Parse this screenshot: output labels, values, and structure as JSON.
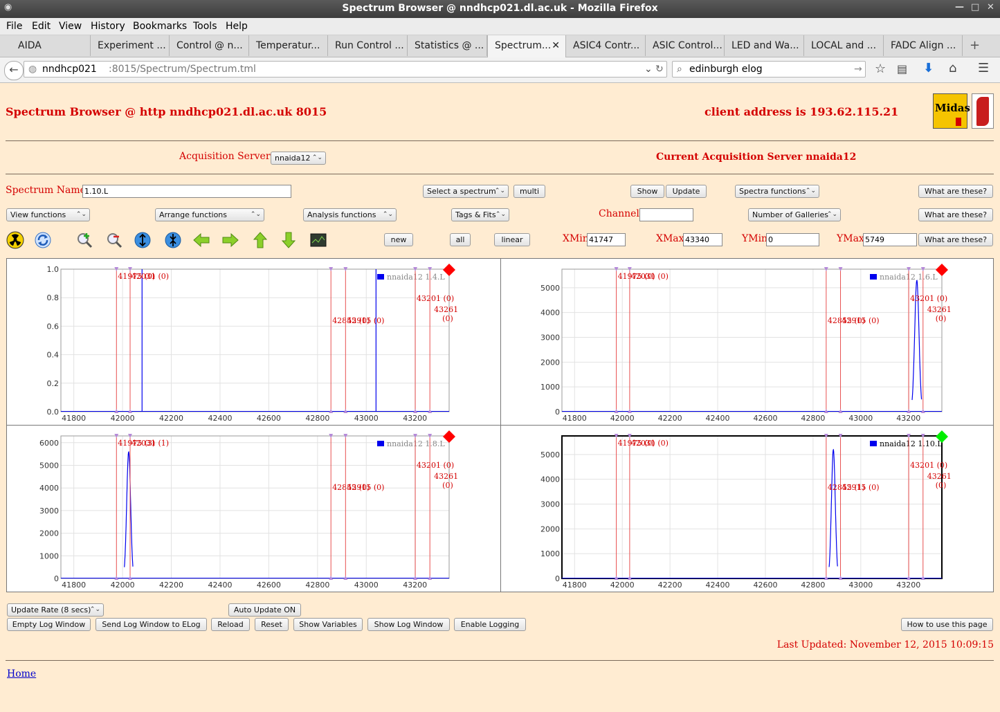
{
  "window": {
    "title": "Spectrum Browser @ nndhcp021.dl.ac.uk - Mozilla Firefox"
  },
  "menu": [
    "File",
    "Edit",
    "View",
    "History",
    "Bookmarks",
    "Tools",
    "Help"
  ],
  "tabs": [
    "AIDA",
    "Experiment ...",
    "Control @ n...",
    "Temperatur...",
    "Run Control ...",
    "Statistics @ ...",
    "Spectrum...",
    "ASIC4 Contr...",
    "ASIC Control...",
    "LED and Wa...",
    "LOCAL and ...",
    "FADC Align ..."
  ],
  "url": {
    "host": "nndhcp021",
    "path": ":8015/Spectrum/Spectrum.tml"
  },
  "search": {
    "value": "edinburgh elog"
  },
  "page": {
    "title": "Spectrum Browser @ http nndhcp021.dl.ac.uk 8015",
    "client": "client address is 193.62.115.21",
    "logo_midas": "Midas",
    "acq_label": "Acquisition Servers",
    "acq_value": "nnaida12",
    "current_server": "Current Acquisition Server nnaida12",
    "spectrum_name_label": "Spectrum Name:",
    "spectrum_name_value": "1.10.L",
    "select_spectrum": "Select a spectrum",
    "multi": "multi",
    "show": "Show",
    "update": "Update",
    "spectra_functions": "Spectra functions",
    "what": "What are these?",
    "view_functions": "View functions",
    "arrange_functions": "Arrange functions",
    "analysis_functions": "Analysis functions",
    "tags_fits": "Tags & Fits",
    "channel_label": "Channel:",
    "channel_value": "",
    "galleries": "Number of Galleries",
    "new": "new",
    "all": "all",
    "linear": "linear",
    "xmin_label": "XMin",
    "xmin": "41747",
    "xmax_label": "XMax",
    "xmax": "43340",
    "ymin_label": "YMin",
    "ymin": "0",
    "ymax_label": "YMax",
    "ymax": "5749",
    "update_rate": "Update Rate (8 secs)",
    "auto_update": "Auto Update ON",
    "empty_log": "Empty Log Window",
    "send_log": "Send Log Window to ELog",
    "reload": "Reload",
    "reset": "Reset",
    "show_vars": "Show Variables",
    "show_log": "Show Log Window",
    "enable_logging": "Enable Logging",
    "howto": "How to use this page",
    "last_updated": "Last Updated: November 12, 2015 10:09:15",
    "home": "Home"
  },
  "icons": [
    "radiation-icon",
    "refresh-icon",
    "zoom-in-icon",
    "zoom-out-icon",
    "expand-vertical-icon",
    "compress-vertical-icon",
    "arrow-left-icon",
    "arrow-right-icon",
    "arrow-up-icon",
    "arrow-down-icon",
    "screenshot-icon"
  ],
  "colors": {
    "accent_red": "#d40000",
    "spectrum_blue": "#0000ee",
    "marker_inactive": "#ff0000",
    "marker_active": "#00ee00"
  },
  "chart_data": [
    {
      "type": "line",
      "series": [
        {
          "name": "nnaida12 1.4.L",
          "peaks": [
            {
              "x": 42080,
              "y": 1.0
            },
            {
              "x": 43040,
              "y": 1.0
            }
          ]
        }
      ],
      "xlim": [
        41747,
        43340
      ],
      "ylim": [
        0,
        1.0
      ],
      "xticks": [
        "41800",
        "42000",
        "42200",
        "42400",
        "42600",
        "42800",
        "43000",
        "43200"
      ],
      "yticks": [
        "0.0",
        "0.2",
        "0.4",
        "0.6",
        "0.8",
        "1.0"
      ],
      "tags": [
        {
          "x": 41975,
          "text": "41975 (0)"
        },
        {
          "x": 42031,
          "text": "42031 (0)"
        },
        {
          "x": 42855,
          "text": "42855 (0)"
        },
        {
          "x": 42915,
          "text": "42915 (0)"
        },
        {
          "x": 43201,
          "text": "43201 (0)"
        },
        {
          "x": 43261,
          "text": "43261 (0)"
        }
      ],
      "selected": false
    },
    {
      "type": "line",
      "series": [
        {
          "name": "nnaida12 1.6.L",
          "peaks": [
            {
              "x": 43235,
              "y": 5300,
              "w": 9
            }
          ]
        }
      ],
      "xlim": [
        41747,
        43340
      ],
      "ylim": [
        0,
        5749
      ],
      "xticks": [
        "41800",
        "42000",
        "42200",
        "42400",
        "42600",
        "42800",
        "43000",
        "43200"
      ],
      "yticks": [
        "0",
        "1000",
        "2000",
        "3000",
        "4000",
        "5000"
      ],
      "tags": [
        {
          "x": 41975,
          "text": "41975 (0)"
        },
        {
          "x": 42031,
          "text": "42031 (0)"
        },
        {
          "x": 42855,
          "text": "42855 (0)"
        },
        {
          "x": 42915,
          "text": "42915 (0)"
        },
        {
          "x": 43201,
          "text": "43201 (0)"
        },
        {
          "x": 43261,
          "text": "43261 (0)"
        }
      ],
      "selected": false
    },
    {
      "type": "line",
      "series": [
        {
          "name": "nnaida12 1.8.L",
          "peaks": [
            {
              "x": 42025,
              "y": 5600,
              "w": 8
            }
          ]
        }
      ],
      "xlim": [
        41747,
        43340
      ],
      "ylim": [
        0,
        6300
      ],
      "xticks": [
        "41800",
        "42000",
        "42200",
        "42400",
        "42600",
        "42800",
        "43000",
        "43200"
      ],
      "yticks": [
        "0",
        "1000",
        "2000",
        "3000",
        "4000",
        "5000",
        "6000"
      ],
      "tags": [
        {
          "x": 41975,
          "text": "41975 (3)"
        },
        {
          "x": 42031,
          "text": "42031 (1)"
        },
        {
          "x": 42855,
          "text": "42855 (0)"
        },
        {
          "x": 42915,
          "text": "42915 (0)"
        },
        {
          "x": 43201,
          "text": "43201 (0)"
        },
        {
          "x": 43261,
          "text": "43261 (0)"
        }
      ],
      "selected": false
    },
    {
      "type": "line",
      "series": [
        {
          "name": "nnaida12 1.10.L",
          "peaks": [
            {
              "x": 42885,
              "y": 5200,
              "w": 8
            }
          ]
        }
      ],
      "xlim": [
        41747,
        43340
      ],
      "ylim": [
        0,
        5749
      ],
      "xticks": [
        "41800",
        "42000",
        "42200",
        "42400",
        "42600",
        "42800",
        "43000",
        "43200"
      ],
      "yticks": [
        "0",
        "1000",
        "2000",
        "3000",
        "4000",
        "5000"
      ],
      "tags": [
        {
          "x": 41975,
          "text": "41975 (0)"
        },
        {
          "x": 42031,
          "text": "42031 (0)"
        },
        {
          "x": 42855,
          "text": "42855 (1)"
        },
        {
          "x": 42915,
          "text": "42915 (0)"
        },
        {
          "x": 43201,
          "text": "43201 (0)"
        },
        {
          "x": 43261,
          "text": "43261 (0)"
        }
      ],
      "selected": true
    }
  ]
}
